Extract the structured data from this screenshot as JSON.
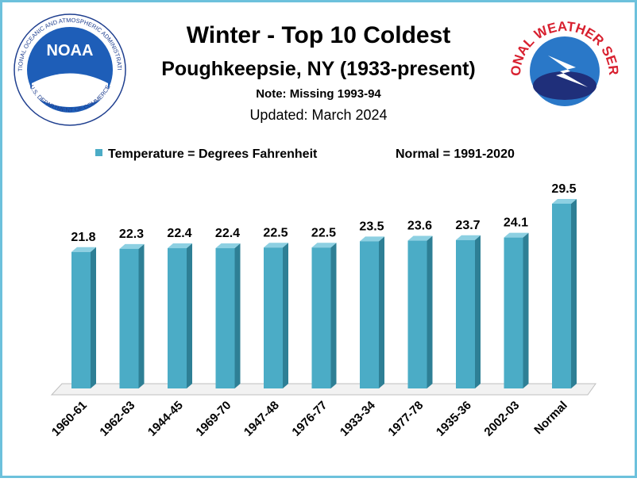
{
  "chart_data": {
    "type": "bar",
    "title": "Winter - Top  10 Coldest",
    "subtitle": "Poughkeepsie, NY (1933-present)",
    "note": "Note: Missing 1993-94",
    "updated": "Updated:  March 2024",
    "legend_note": "Normal = 1991-2020",
    "logos": {
      "noaa": "NOAA",
      "noaa_ring_top": "NATIONAL OCEANIC AND ATMOSPHERIC ADMINISTRATION",
      "noaa_ring_bottom": "U.S. DEPARTMENT OF COMMERCE",
      "nws_ring": "NATIONAL WEATHER SERVICE"
    },
    "categories": [
      "1960-61",
      "1962-63",
      "1944-45",
      "1969-70",
      "1947-48",
      "1976-77",
      "1933-34",
      "1977-78",
      "1935-36",
      "2002-03",
      "Normal"
    ],
    "series": [
      {
        "name": "Temperature = Degrees Fahrenheit",
        "color": "#4bacc6",
        "values": [
          21.8,
          22.3,
          22.4,
          22.4,
          22.5,
          22.5,
          23.5,
          23.6,
          23.7,
          24.1,
          29.5
        ]
      }
    ],
    "ylim": [
      0,
      30
    ]
  }
}
